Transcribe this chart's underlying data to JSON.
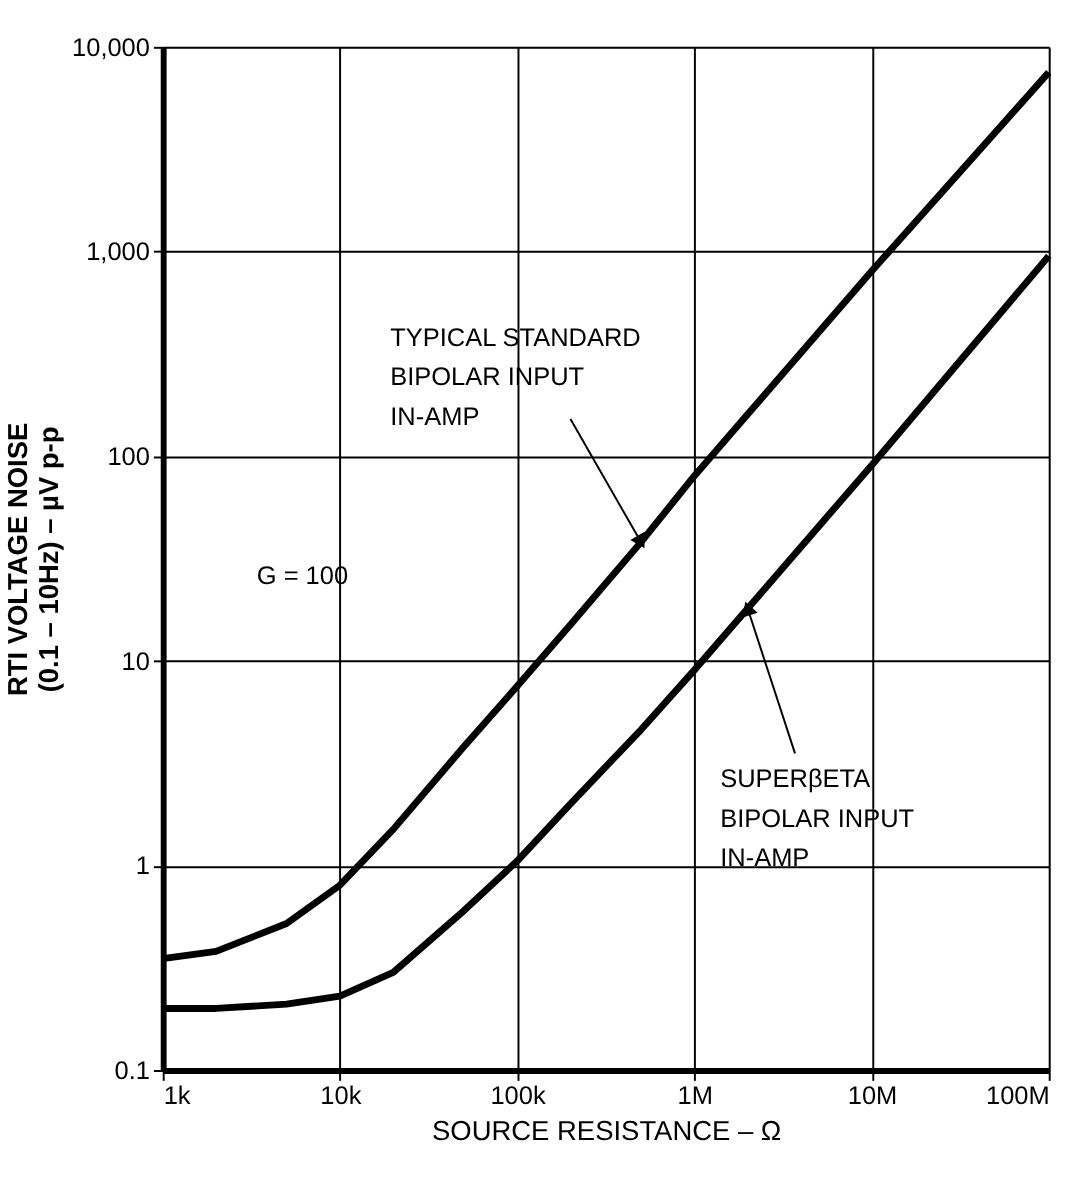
{
  "chart_data": {
    "type": "line",
    "xlabel": "SOURCE RESISTANCE – Ω",
    "ylabel": "RTI VOLTAGE NOISE\n(0.1 – 10Hz) – µV p-p",
    "log": "xy",
    "grid": true,
    "legend": false,
    "marker": "none",
    "line_style": "solid",
    "xlim": [
      1000,
      100000000
    ],
    "xticks": [
      {
        "value": 1000,
        "label": "1k"
      },
      {
        "value": 10000,
        "label": "10k"
      },
      {
        "value": 100000,
        "label": "100k"
      },
      {
        "value": 1000000,
        "label": "1M"
      },
      {
        "value": 10000000,
        "label": "10M"
      },
      {
        "value": 100000000,
        "label": "100M"
      }
    ],
    "ylim": [
      0.1,
      10000
    ],
    "yticks": [
      0.1,
      1,
      10,
      100,
      {
        "value": 1000,
        "label": "1,000"
      },
      {
        "value": 10000,
        "label": "10,000"
      }
    ],
    "x": [
      1000,
      2000,
      5000,
      10000,
      20000,
      50000,
      100000,
      200000,
      500000,
      1000000,
      2000000,
      10000000,
      100000000
    ],
    "series": [
      {
        "name": "TYPICAL STANDARD\nBIPOLAR INPUT\nIN-AMP",
        "color": "#000000",
        "values": [
          0.35,
          0.38,
          0.52,
          0.8,
          1.5,
          3.8,
          7.5,
          15,
          38,
          80,
          160,
          800,
          7500
        ]
      },
      {
        "name": "SUPERβETA\nBIPOLAR INPUT\nIN-AMP",
        "color": "#000000",
        "values": [
          0.2,
          0.2,
          0.21,
          0.23,
          0.3,
          0.6,
          1.05,
          2,
          4.6,
          9,
          18,
          90,
          950
        ]
      }
    ],
    "annotations": [
      "G = 100"
    ]
  }
}
